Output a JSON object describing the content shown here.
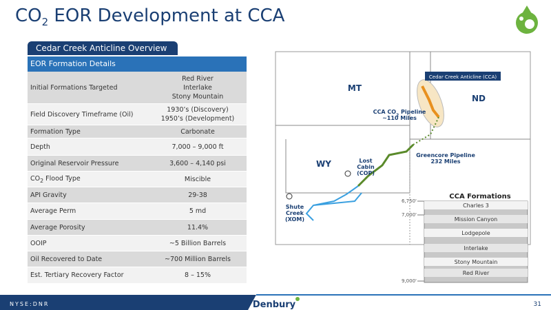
{
  "header": {
    "title": {
      "prefix": "CO",
      "sub": "2",
      "rest": " EOR Development at CCA"
    }
  },
  "tab": "Cedar Creek Anticline Overview",
  "table": {
    "title": "EOR Formation Details",
    "rows": [
      {
        "label": "Initial Formations Targeted",
        "value": [
          "Red River",
          "Interlake",
          "Stony Mountain"
        ]
      },
      {
        "label": "Field Discovery Timeframe (Oil)",
        "value": [
          "1930’s (Discovery)",
          "1950’s (Development)"
        ]
      },
      {
        "label": "Formation Type",
        "value": [
          "Carbonate"
        ]
      },
      {
        "label": "Depth",
        "value": [
          "7,000 – 9,000 ft"
        ]
      },
      {
        "label": "Original Reservoir Pressure",
        "value": [
          "3,600 – 4,140 psi"
        ]
      },
      {
        "label": {
          "prefix": "CO",
          "sub": "2",
          "rest": " Flood Type"
        },
        "value": [
          "Miscible"
        ]
      },
      {
        "label": "API Gravity",
        "value": [
          "29-38"
        ]
      },
      {
        "label": "Average Perm",
        "value": [
          "5 md"
        ]
      },
      {
        "label": "Average Porosity",
        "value": [
          "11.4%"
        ]
      },
      {
        "label": "OOIP",
        "value": [
          "~5 Billion Barrels"
        ]
      },
      {
        "label": "Oil Recovered to Date",
        "value": [
          "~700 Million Barrels"
        ]
      },
      {
        "label": "Est. Tertiary Recovery Factor",
        "value": [
          "8 – 15%"
        ]
      }
    ]
  },
  "map": {
    "states": [
      "MT",
      "ND",
      "WY"
    ],
    "cca_label": "Cedar Creek Anticline (CCA)",
    "cca_pipeline": {
      "prefix": "CCA CO",
      "sub": "2",
      "rest": " Pipeline",
      "line2": "~110 Miles"
    },
    "greencore": [
      "Greencore Pipeline",
      "232 Miles"
    ],
    "lost_cabin": [
      "Lost",
      "Cabin",
      "(COP)"
    ],
    "shute_creek": [
      "Shute",
      "Creek",
      "(XOM)"
    ]
  },
  "formations": {
    "title": "CCA Formations",
    "depths": [
      "6,750'",
      "7,000'",
      "9,000'"
    ],
    "layers": [
      "Charles 3",
      "Mission Canyon",
      "Lodgepole",
      "Interlake",
      "Stony Mountain",
      "Red River"
    ]
  },
  "footer": {
    "ticker": "NYSE:DNR",
    "brand": "Denbury",
    "page": "31"
  }
}
